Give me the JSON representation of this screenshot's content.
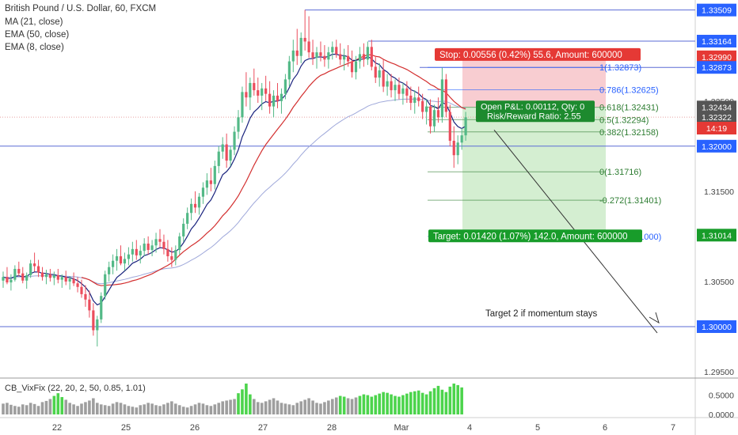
{
  "header": {
    "title": "British Pound / U.S. Dollar, 60, FXCM",
    "studies": [
      "MA (21, close)",
      "EMA (50, close)",
      "EMA (8, close)"
    ]
  },
  "indicator_label": "CB_VixFix (22, 20, 2, 50, 0.85, 1.01)",
  "colors": {
    "up": "#53b987",
    "down": "#eb4d5c",
    "ma21": "#d32f2f",
    "ema8": "#1a237e",
    "ema50": "#9fa8da",
    "level": "#5b6bd6",
    "stop_zone": "#f7c8cc",
    "target_zone": "#cfeccc",
    "stop_label": "#e53935",
    "target_label": "#189c2a",
    "pl_label": "#1d8a2e",
    "fib": "#2e7d32",
    "fib_blue": "#2962ff",
    "vix_green": "#4cd44c",
    "vix_gray": "#9e9e9e"
  },
  "chart_data": {
    "type": "candlestick",
    "price_axis": {
      "ticks": [
        "1.33500",
        "1.33000",
        "1.32500",
        "1.32000",
        "1.31500",
        "1.31000",
        "1.30500",
        "1.30000",
        "1.29500"
      ],
      "range": [
        1.2943,
        1.3362
      ]
    },
    "time_axis": {
      "ticks": [
        "22",
        "25",
        "26",
        "27",
        "28",
        "Mar",
        "4",
        "5",
        "6",
        "7"
      ]
    },
    "price_labels": [
      {
        "text": "1.33509",
        "value": 1.33509,
        "color": "#2962ff"
      },
      {
        "text": "1.33164",
        "value": 1.33164,
        "color": "#2962ff"
      },
      {
        "text": "1.32990",
        "value": 1.3299,
        "color": "#e53935"
      },
      {
        "text": "1.32873",
        "value": 1.32873,
        "color": "#2962ff"
      },
      {
        "text": "1.32434",
        "value": 1.32434,
        "color": "#555555"
      },
      {
        "text": "1.32322",
        "value": 1.32322,
        "color": "#555555"
      },
      {
        "text": "14:19",
        "value": 1.322,
        "color": "#e53935"
      },
      {
        "text": "1.32000",
        "value": 1.32,
        "color": "#2962ff"
      },
      {
        "text": "1.31014",
        "value": 1.31014,
        "color": "#189c2a"
      },
      {
        "text": "1.30000",
        "value": 1.3,
        "color": "#2962ff"
      }
    ],
    "horizontal_levels": [
      1.33509,
      1.33164,
      1.32873,
      1.32,
      1.3
    ],
    "fibonacci": [
      {
        "label": "1(1.32873)",
        "value": 1.32873
      },
      {
        "label": "0.786(1.32625)",
        "value": 1.32625
      },
      {
        "label": "0.618(1.32431)",
        "value": 1.32431
      },
      {
        "label": "0.5(1.32294)",
        "value": 1.32294
      },
      {
        "label": "0.382(1.32158)",
        "value": 1.32158
      },
      {
        "label": "0(1.31716)",
        "value": 1.31716
      },
      {
        "label": "-0.272(1.31401)",
        "value": 1.31401
      },
      {
        "label": "-0.618(1.31000)",
        "value": 1.31
      }
    ],
    "position": {
      "entry": 1.32434,
      "stop": 1.3299,
      "target": 1.31014,
      "stop_text": "Stop: 0.00556 (0.42%) 55.6, Amount: 600000",
      "target_text": "Target: 0.01420 (1.07%) 142.0, Amount: 600000",
      "pl_text_1": "Open P&L: 0.00112, Qty: 0",
      "pl_text_2": "Risk/Reward Ratio: 2.55"
    },
    "annotation": "Target 2 if momentum stays",
    "candles": [
      [
        1.3051,
        1.3061,
        1.3043,
        1.3055
      ],
      [
        1.3055,
        1.3066,
        1.3047,
        1.3049
      ],
      [
        1.3049,
        1.3058,
        1.304,
        1.3052
      ],
      [
        1.3052,
        1.3068,
        1.305,
        1.3064
      ],
      [
        1.3064,
        1.3072,
        1.3056,
        1.3059
      ],
      [
        1.3059,
        1.3066,
        1.3048,
        1.3051
      ],
      [
        1.3051,
        1.306,
        1.3042,
        1.3057
      ],
      [
        1.3057,
        1.3074,
        1.3054,
        1.307
      ],
      [
        1.307,
        1.3082,
        1.3061,
        1.3067
      ],
      [
        1.3067,
        1.3074,
        1.3055,
        1.306
      ],
      [
        1.306,
        1.3066,
        1.3051,
        1.3055
      ],
      [
        1.3055,
        1.3063,
        1.3047,
        1.3058
      ],
      [
        1.3058,
        1.3064,
        1.305,
        1.3054
      ],
      [
        1.3054,
        1.3061,
        1.3046,
        1.3057
      ],
      [
        1.3057,
        1.3064,
        1.3048,
        1.3052
      ],
      [
        1.3052,
        1.3058,
        1.3043,
        1.3055
      ],
      [
        1.3055,
        1.3062,
        1.3046,
        1.305
      ],
      [
        1.305,
        1.3056,
        1.3041,
        1.3053
      ],
      [
        1.3053,
        1.306,
        1.3045,
        1.3048
      ],
      [
        1.3048,
        1.3055,
        1.3038,
        1.3044
      ],
      [
        1.3044,
        1.3052,
        1.3032,
        1.3036
      ],
      [
        1.3036,
        1.3046,
        1.3022,
        1.303
      ],
      [
        1.303,
        1.304,
        1.301,
        1.3018
      ],
      [
        1.3018,
        1.3026,
        1.299,
        1.2996
      ],
      [
        1.2996,
        1.3012,
        1.2978,
        1.3008
      ],
      [
        1.3008,
        1.3038,
        1.3004,
        1.3034
      ],
      [
        1.3034,
        1.3062,
        1.303,
        1.3058
      ],
      [
        1.3058,
        1.3072,
        1.305,
        1.3066
      ],
      [
        1.3066,
        1.308,
        1.3058,
        1.3073
      ],
      [
        1.3073,
        1.3086,
        1.3062,
        1.3078
      ],
      [
        1.3078,
        1.309,
        1.3068,
        1.307
      ],
      [
        1.307,
        1.3082,
        1.3062,
        1.3075
      ],
      [
        1.3075,
        1.3088,
        1.3068,
        1.308
      ],
      [
        1.308,
        1.3094,
        1.3072,
        1.3086
      ],
      [
        1.3086,
        1.3096,
        1.3074,
        1.3079
      ],
      [
        1.3079,
        1.309,
        1.307,
        1.3084
      ],
      [
        1.3084,
        1.3098,
        1.3078,
        1.3092
      ],
      [
        1.3092,
        1.31,
        1.308,
        1.3085
      ],
      [
        1.3085,
        1.3096,
        1.3078,
        1.309
      ],
      [
        1.309,
        1.3104,
        1.3082,
        1.3097
      ],
      [
        1.3097,
        1.3108,
        1.3088,
        1.3094
      ],
      [
        1.3094,
        1.3102,
        1.308,
        1.3086
      ],
      [
        1.3086,
        1.3096,
        1.3072,
        1.3078
      ],
      [
        1.3078,
        1.3088,
        1.3066,
        1.3074
      ],
      [
        1.3074,
        1.309,
        1.3068,
        1.3085
      ],
      [
        1.3085,
        1.3104,
        1.308,
        1.31
      ],
      [
        1.31,
        1.312,
        1.3094,
        1.3114
      ],
      [
        1.3114,
        1.3132,
        1.3108,
        1.3126
      ],
      [
        1.3126,
        1.3142,
        1.3118,
        1.3136
      ],
      [
        1.3136,
        1.315,
        1.3126,
        1.3132
      ],
      [
        1.3132,
        1.3148,
        1.3124,
        1.3144
      ],
      [
        1.3144,
        1.316,
        1.3136,
        1.3154
      ],
      [
        1.3154,
        1.317,
        1.3146,
        1.3162
      ],
      [
        1.3162,
        1.3176,
        1.315,
        1.3158
      ],
      [
        1.3158,
        1.3184,
        1.3152,
        1.3178
      ],
      [
        1.3178,
        1.32,
        1.317,
        1.3194
      ],
      [
        1.3194,
        1.321,
        1.3186,
        1.3202
      ],
      [
        1.3202,
        1.3214,
        1.3176,
        1.3184
      ],
      [
        1.3184,
        1.32,
        1.3178,
        1.3196
      ],
      [
        1.3196,
        1.3222,
        1.319,
        1.3216
      ],
      [
        1.3216,
        1.324,
        1.3208,
        1.3232
      ],
      [
        1.3232,
        1.3266,
        1.3226,
        1.326
      ],
      [
        1.326,
        1.3282,
        1.3244,
        1.3254
      ],
      [
        1.3254,
        1.3276,
        1.324,
        1.327
      ],
      [
        1.327,
        1.3286,
        1.3256,
        1.3262
      ],
      [
        1.3262,
        1.3276,
        1.3248,
        1.3256
      ],
      [
        1.3256,
        1.327,
        1.324,
        1.3264
      ],
      [
        1.3264,
        1.3278,
        1.325,
        1.3258
      ],
      [
        1.3258,
        1.3272,
        1.3236,
        1.3244
      ],
      [
        1.3244,
        1.3262,
        1.3232,
        1.3256
      ],
      [
        1.3256,
        1.327,
        1.3242,
        1.325
      ],
      [
        1.325,
        1.3264,
        1.3236,
        1.3258
      ],
      [
        1.3258,
        1.328,
        1.3252,
        1.3274
      ],
      [
        1.3274,
        1.33,
        1.3266,
        1.3294
      ],
      [
        1.3294,
        1.3318,
        1.3282,
        1.3306
      ],
      [
        1.3306,
        1.333,
        1.329,
        1.33
      ],
      [
        1.33,
        1.3326,
        1.3292,
        1.332
      ],
      [
        1.332,
        1.3351,
        1.3306,
        1.3316
      ],
      [
        1.3316,
        1.3344,
        1.3298,
        1.3304
      ],
      [
        1.3304,
        1.3318,
        1.329,
        1.3298
      ],
      [
        1.3298,
        1.331,
        1.3286,
        1.3304
      ],
      [
        1.3304,
        1.3316,
        1.3294,
        1.33
      ],
      [
        1.33,
        1.3312,
        1.3288,
        1.3296
      ],
      [
        1.3296,
        1.331,
        1.3286,
        1.3304
      ],
      [
        1.3304,
        1.3316,
        1.3296,
        1.331
      ],
      [
        1.331,
        1.3318,
        1.3298,
        1.3302
      ],
      [
        1.3302,
        1.3314,
        1.329,
        1.3296
      ],
      [
        1.3296,
        1.3308,
        1.3284,
        1.33
      ],
      [
        1.33,
        1.3312,
        1.3288,
        1.3294
      ],
      [
        1.3294,
        1.3306,
        1.3276,
        1.3282
      ],
      [
        1.3282,
        1.33,
        1.3274,
        1.3294
      ],
      [
        1.3294,
        1.331,
        1.3286,
        1.3302
      ],
      [
        1.3302,
        1.3314,
        1.3288,
        1.3296
      ],
      [
        1.3296,
        1.3316,
        1.329,
        1.331
      ],
      [
        1.331,
        1.3318,
        1.3284,
        1.3288
      ],
      [
        1.3288,
        1.33,
        1.327,
        1.3276
      ],
      [
        1.3276,
        1.3292,
        1.3266,
        1.3284
      ],
      [
        1.3284,
        1.3296,
        1.326,
        1.3266
      ],
      [
        1.3266,
        1.328,
        1.3256,
        1.3272
      ],
      [
        1.3272,
        1.328,
        1.3254,
        1.3262
      ],
      [
        1.3262,
        1.3274,
        1.325,
        1.3268
      ],
      [
        1.3268,
        1.3276,
        1.3252,
        1.3258
      ],
      [
        1.3258,
        1.327,
        1.3246,
        1.3264
      ],
      [
        1.3264,
        1.3272,
        1.3248,
        1.3256
      ],
      [
        1.3256,
        1.3266,
        1.324,
        1.3248
      ],
      [
        1.3248,
        1.3262,
        1.3236,
        1.3254
      ],
      [
        1.3254,
        1.3266,
        1.3244,
        1.325
      ],
      [
        1.325,
        1.3258,
        1.323,
        1.3238
      ],
      [
        1.3238,
        1.3252,
        1.3224,
        1.3244
      ],
      [
        1.3244,
        1.3252,
        1.3214,
        1.3222
      ],
      [
        1.3222,
        1.3246,
        1.3216,
        1.324
      ],
      [
        1.324,
        1.3254,
        1.3226,
        1.3232
      ],
      [
        1.3232,
        1.3287,
        1.3226,
        1.3274
      ],
      [
        1.3274,
        1.328,
        1.3232,
        1.3238
      ],
      [
        1.3238,
        1.3246,
        1.32,
        1.3206
      ],
      [
        1.3206,
        1.3222,
        1.3176,
        1.319
      ],
      [
        1.319,
        1.3212,
        1.318,
        1.3204
      ],
      [
        1.3204,
        1.322,
        1.3196,
        1.3212
      ],
      [
        1.3212,
        1.3238,
        1.3206,
        1.3232
      ]
    ],
    "vixfix": [
      0.28,
      0.3,
      0.25,
      0.22,
      0.2,
      0.26,
      0.24,
      0.3,
      0.27,
      0.22,
      0.32,
      0.35,
      0.4,
      0.48,
      0.55,
      0.45,
      0.38,
      0.3,
      0.26,
      0.22,
      0.28,
      0.32,
      0.36,
      0.42,
      0.3,
      0.26,
      0.24,
      0.22,
      0.28,
      0.32,
      0.3,
      0.26,
      0.22,
      0.2,
      0.18,
      0.24,
      0.26,
      0.3,
      0.28,
      0.24,
      0.22,
      0.26,
      0.3,
      0.34,
      0.28,
      0.24,
      0.2,
      0.18,
      0.22,
      0.26,
      0.3,
      0.28,
      0.24,
      0.22,
      0.26,
      0.3,
      0.34,
      0.36,
      0.38,
      0.4,
      0.55,
      0.65,
      0.8,
      0.52,
      0.4,
      0.32,
      0.3,
      0.34,
      0.38,
      0.42,
      0.36,
      0.3,
      0.28,
      0.26,
      0.24,
      0.3,
      0.34,
      0.38,
      0.42,
      0.36,
      0.3,
      0.28,
      0.32,
      0.36,
      0.4,
      0.44,
      0.48,
      0.46,
      0.42,
      0.4,
      0.44,
      0.48,
      0.52,
      0.5,
      0.46,
      0.5,
      0.54,
      0.58,
      0.56,
      0.52,
      0.48,
      0.46,
      0.5,
      0.54,
      0.58,
      0.6,
      0.62,
      0.56,
      0.52,
      0.6,
      0.68,
      0.74,
      0.64,
      0.58,
      0.72,
      0.8,
      0.76,
      0.7
    ],
    "vixfix_axis": [
      "0.5000",
      "0.0000"
    ]
  }
}
